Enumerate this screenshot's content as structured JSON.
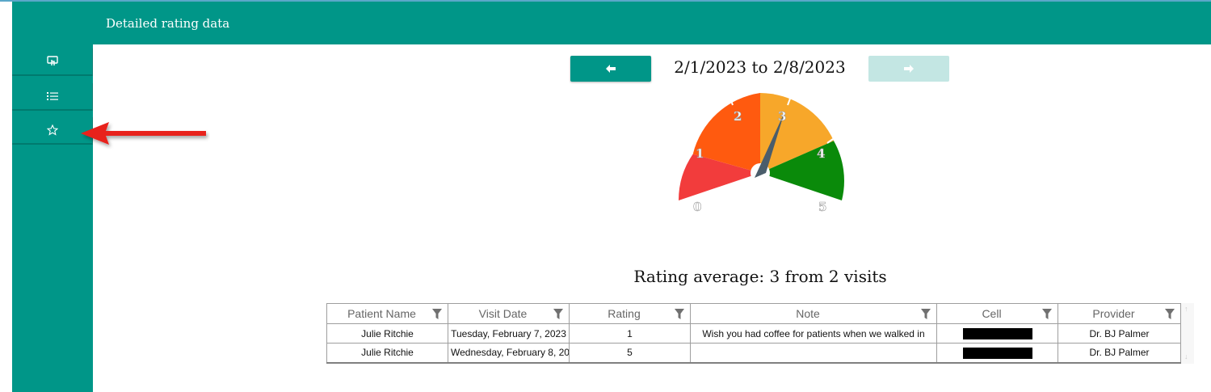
{
  "header": {
    "title": "Detailed rating data"
  },
  "sidebar": {
    "items": [
      {
        "name": "touch-screen-icon"
      },
      {
        "name": "list-icon"
      },
      {
        "name": "star-icon"
      }
    ]
  },
  "navigation": {
    "range_label": "2/1/2023 to 2/8/2023",
    "prev_icon": "arrow-left-icon",
    "next_icon": "arrow-right-icon",
    "next_enabled": false
  },
  "gauge": {
    "min": 0,
    "max": 5,
    "value": 3,
    "labels": [
      "0",
      "1",
      "2",
      "3",
      "4",
      "5"
    ],
    "colors": {
      "band1": "#f23c3c",
      "band2": "#ff5a0f",
      "band3": "#f7a72a",
      "band4": "#0a8a0a",
      "needle": "#4a5d6b"
    }
  },
  "summary": {
    "text": "Rating average: 3 from 2 visits"
  },
  "table": {
    "columns": [
      "Patient Name",
      "Visit Date",
      "Rating",
      "Note",
      "Cell",
      "Provider"
    ],
    "rows": [
      {
        "patient": "Julie Ritchie",
        "visit_date": "Tuesday, February 7, 2023",
        "rating": "1",
        "note": "Wish you had coffee for patients when we walked in",
        "cell": "",
        "provider": "Dr. BJ Palmer"
      },
      {
        "patient": "Julie Ritchie",
        "visit_date": "Wednesday, February 8, 20",
        "rating": "5",
        "note": "",
        "cell": "",
        "provider": "Dr. BJ Palmer"
      }
    ]
  },
  "theme": {
    "primary": "#009688",
    "disabled": "#c3e6e3",
    "annotation_arrow": "#e8201d"
  }
}
